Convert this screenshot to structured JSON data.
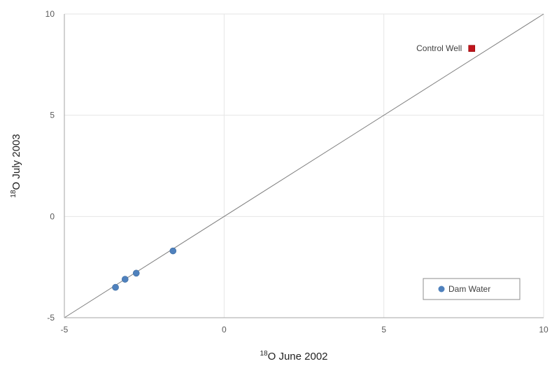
{
  "chart_data": {
    "type": "scatter",
    "xlim": [
      -5,
      10
    ],
    "ylim": [
      -5,
      10
    ],
    "x_ticks": [
      "-5",
      "0",
      "5",
      "10"
    ],
    "y_ticks": [
      "-5",
      "0",
      "5",
      "10"
    ],
    "x_tick_values": [
      -5,
      0,
      5,
      10
    ],
    "y_tick_values": [
      -5,
      0,
      5,
      10
    ],
    "xlabel": {
      "sup": "18",
      "text": "O June 2002"
    },
    "ylabel": {
      "sup": "18",
      "text": "O July 2003"
    },
    "grid": true,
    "reference_line": {
      "type": "y=x",
      "from": [
        -5,
        -5
      ],
      "to": [
        10,
        10
      ]
    },
    "series": [
      {
        "name": "Dam Water",
        "marker": "circle",
        "color": "#4f81bd",
        "points": [
          {
            "x": -3.4,
            "y": -3.5
          },
          {
            "x": -3.1,
            "y": -3.1
          },
          {
            "x": -2.75,
            "y": -2.8
          },
          {
            "x": -1.6,
            "y": -1.7
          }
        ]
      },
      {
        "name": "Control Well",
        "marker": "square",
        "color": "#c0141c",
        "points": [
          {
            "x": 7.75,
            "y": 8.3
          }
        ]
      }
    ],
    "annotations": [
      {
        "text": "Control Well",
        "series": "Control Well"
      }
    ],
    "legend": {
      "position": "bottom-right",
      "entries": [
        {
          "label": "Dam Water",
          "series": "Dam Water"
        }
      ]
    }
  }
}
